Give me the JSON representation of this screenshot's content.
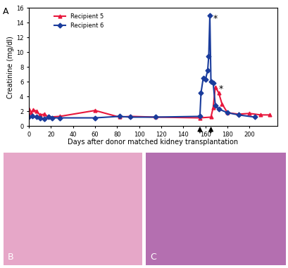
{
  "chart_data": {
    "type": "line",
    "panel_label": "A",
    "x_label": "Days after donor matched kidney transplantation",
    "y_label": "Creatinine (mg/dl)",
    "series": [
      {
        "name": "Recipient 5",
        "color": "#e8173c",
        "marker": "triangle",
        "line_style": "solid",
        "x": [
          0,
          2,
          4,
          7,
          10,
          14,
          18,
          28,
          60,
          82,
          92,
          115,
          155,
          165,
          167,
          169,
          172,
          175,
          180,
          190,
          200,
          210,
          218
        ],
        "values": [
          2.3,
          1.8,
          2.2,
          2.0,
          1.5,
          1.6,
          1.2,
          1.3,
          2.1,
          1.2,
          1.3,
          1.2,
          1.1,
          1.2,
          2.5,
          5.3,
          4.5,
          3.0,
          1.8,
          1.6,
          1.7,
          1.5,
          1.5
        ]
      },
      {
        "name": "Recipient 6",
        "color": "#1a3c9c",
        "marker": "diamond",
        "line_style": "solid",
        "x": [
          0,
          3,
          7,
          10,
          14,
          18,
          21,
          28,
          60,
          82,
          92,
          115,
          155,
          156,
          158,
          160,
          162,
          163,
          164,
          165,
          167,
          169,
          172,
          180,
          190,
          205
        ],
        "values": [
          1.2,
          1.3,
          1.2,
          1.1,
          1.0,
          1.2,
          1.1,
          1.1,
          1.1,
          1.3,
          1.2,
          1.2,
          1.3,
          4.5,
          6.5,
          6.3,
          7.5,
          9.5,
          15.0,
          6.0,
          5.8,
          2.8,
          2.3,
          1.8,
          1.5,
          1.2
        ]
      }
    ],
    "annotations": [
      {
        "text": "*",
        "x": 167,
        "y": 14.6
      },
      {
        "text": "*",
        "x": 172,
        "y": 5.0
      }
    ],
    "arrows_x": [
      155,
      165
    ],
    "xlim": [
      0,
      225
    ],
    "xticks": [
      0,
      20,
      40,
      60,
      80,
      100,
      120,
      140,
      160,
      180,
      200
    ],
    "ylim": [
      0,
      16
    ],
    "yticks": [
      0,
      2,
      4,
      6,
      8,
      10,
      12,
      14,
      16
    ],
    "legend": "upper left"
  },
  "images": [
    {
      "label": "B"
    },
    {
      "label": "C"
    }
  ]
}
